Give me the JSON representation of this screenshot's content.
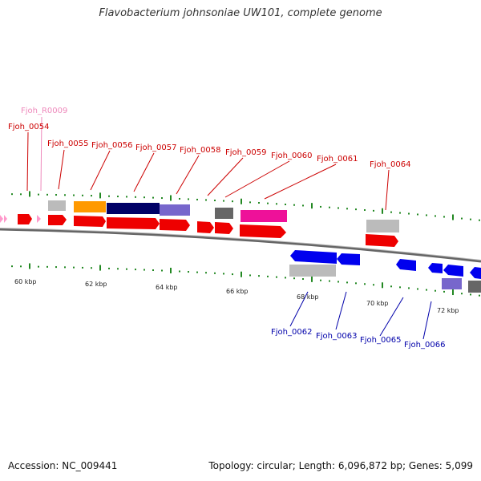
{
  "title": "Flavobacterium johnsoniae UW101, complete genome",
  "footer": {
    "accession": "Accession: NC_009441",
    "summary": "Topology: circular; Length: 6,096,872 bp; Genes: 5,099"
  },
  "colors": {
    "forward_gene": "#ff0000",
    "reverse_gene": "#0000ff",
    "rna": "#ff99cc",
    "backbone": "#666666",
    "tick": "#228822",
    "forward_label": "#cc0000",
    "reverse_label": "#0000aa",
    "rna_label": "#ee88bb"
  },
  "axis": {
    "ticks": [
      "60 kbp",
      "62 kbp",
      "64 kbp",
      "66 kbp",
      "68 kbp",
      "70 kbp",
      "72 kbp"
    ]
  },
  "forward_labels": [
    "Fjoh_0054",
    "Fjoh_0055",
    "Fjoh_0056",
    "Fjoh_0057",
    "Fjoh_0058",
    "Fjoh_0059",
    "Fjoh_0060",
    "Fjoh_0061",
    "Fjoh_0064"
  ],
  "rna_labels": [
    "Fjoh_R0009"
  ],
  "reverse_labels": [
    "Fjoh_0062",
    "Fjoh_0063",
    "Fjoh_0065",
    "Fjoh_0066"
  ]
}
